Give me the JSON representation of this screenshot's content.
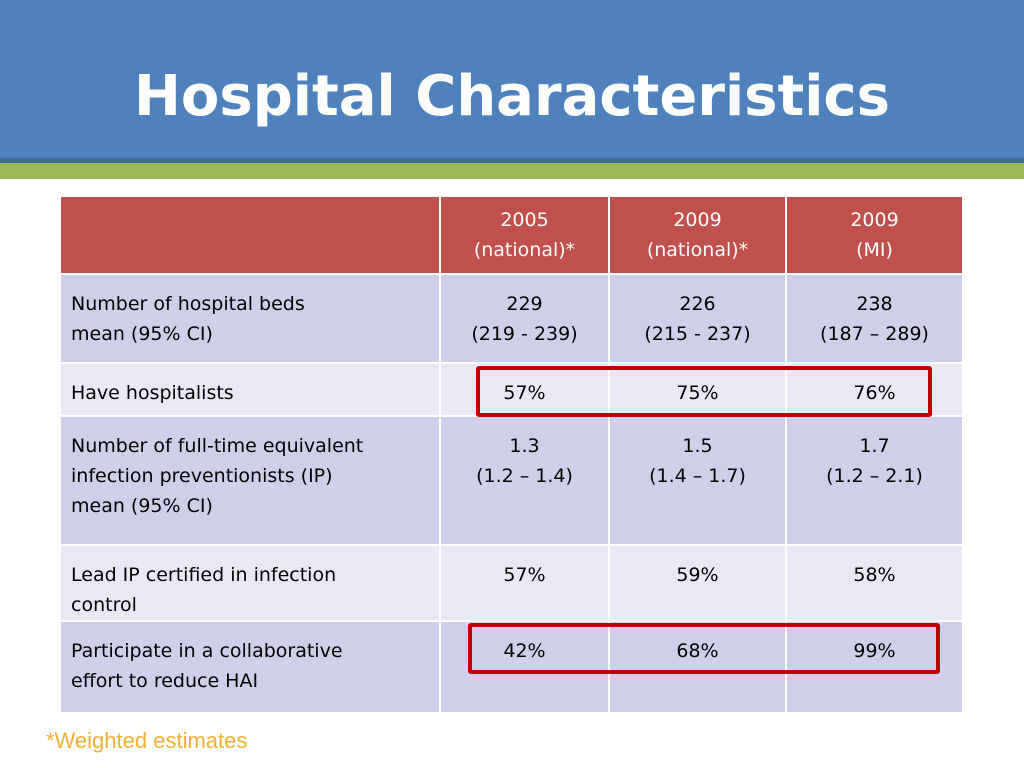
{
  "title": "Hospital Characteristics",
  "table": {
    "headers": [
      {
        "line1": "",
        "line2": ""
      },
      {
        "line1": "2005",
        "line2": "(national)*"
      },
      {
        "line1": "2009",
        "line2": "(national)*"
      },
      {
        "line1": "2009",
        "line2": "(MI)"
      }
    ],
    "rows": [
      {
        "label_lines": [
          "Number of hospital beds",
          "mean (95% CI)"
        ],
        "cells": [
          [
            "229",
            "(219 - 239)"
          ],
          [
            "226",
            "(215 - 237)"
          ],
          [
            "238",
            "(187 – 289)"
          ]
        ]
      },
      {
        "label_lines": [
          "Have hospitalists"
        ],
        "cells": [
          [
            "57%"
          ],
          [
            "75%"
          ],
          [
            "76%"
          ]
        ]
      },
      {
        "label_lines": [
          "Number of full-time equivalent",
          "infection preventionists (IP)",
          "mean (95% CI)"
        ],
        "cells": [
          [
            "1.3",
            "(1.2 – 1.4)"
          ],
          [
            "1.5",
            "(1.4 – 1.7)"
          ],
          [
            "1.7",
            "(1.2 – 2.1)"
          ]
        ]
      },
      {
        "label_lines": [
          "Lead IP certified in infection",
          "control"
        ],
        "cells": [
          [
            "57%"
          ],
          [
            "59%"
          ],
          [
            "58%"
          ]
        ]
      },
      {
        "label_lines": [
          "Participate in a collaborative",
          "effort to reduce HAI"
        ],
        "cells": [
          [
            "42%"
          ],
          [
            "68%"
          ],
          [
            "99%"
          ]
        ]
      }
    ]
  },
  "footnote": "*Weighted estimates",
  "colors": {
    "title_bar": "#4f81bd",
    "accent_stripe": "#9bbb59",
    "header": "#c0504d",
    "row_dark": "#cfcfec",
    "row_light": "#e9e9f6",
    "highlight": "#c00000",
    "footnote": "#f2b134"
  }
}
